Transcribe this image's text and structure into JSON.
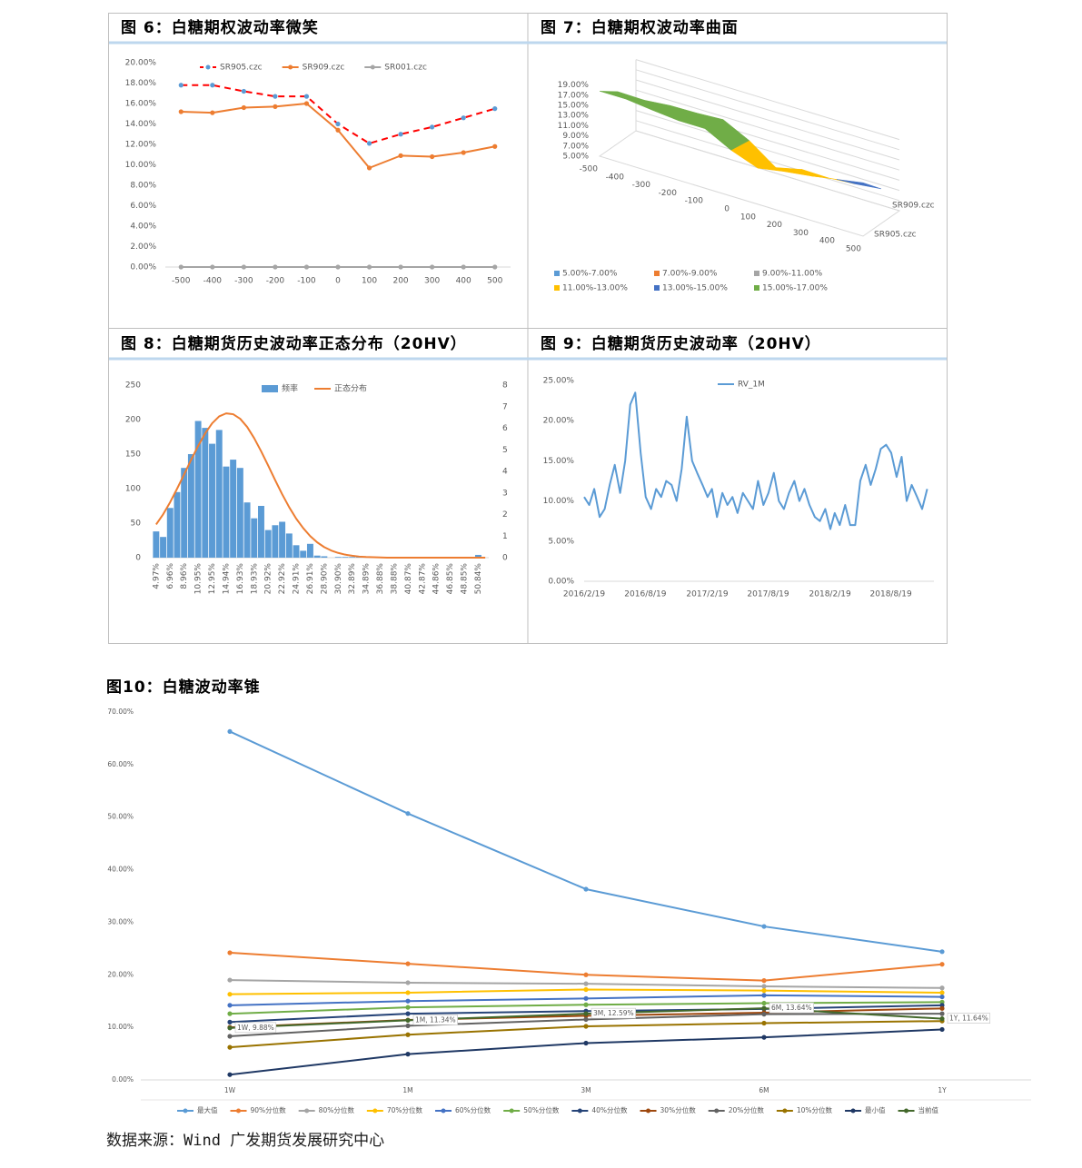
{
  "chart_data": [
    {
      "type": "line",
      "title": "图 6：白糖期权波动率微笑",
      "x": [
        -500,
        -400,
        -300,
        -200,
        -100,
        0,
        100,
        200,
        300,
        400,
        500
      ],
      "xlim": [
        -550,
        550
      ],
      "xticks": [
        -500,
        -400,
        -300,
        -200,
        -100,
        0,
        100,
        200,
        300,
        400,
        500
      ],
      "ylim": [
        0,
        20
      ],
      "yticks": [
        {
          "value": 0,
          "label": "0.00%"
        },
        {
          "value": 2,
          "label": "2.00%"
        },
        {
          "value": 4,
          "label": "4.00%"
        },
        {
          "value": 6,
          "label": "6.00%"
        },
        {
          "value": 8,
          "label": "8.00%"
        },
        {
          "value": 10,
          "label": "10.00%"
        },
        {
          "value": 12,
          "label": "12.00%"
        },
        {
          "value": 14,
          "label": "14.00%"
        },
        {
          "value": 16,
          "label": "16.00%"
        },
        {
          "value": 18,
          "label": "18.00%"
        },
        {
          "value": 20,
          "label": "20.00%"
        }
      ],
      "grid": false,
      "markers": true,
      "series": [
        {
          "name": "SR905.czc",
          "color": "#ff0000",
          "marker_color": "#5b9bd5",
          "dash": true,
          "values": [
            17.8,
            17.8,
            17.2,
            16.7,
            16.7,
            14.0,
            12.1,
            13.0,
            13.7,
            14.6,
            15.5
          ]
        },
        {
          "name": "SR909.czc",
          "color": "#ed7d31",
          "marker_color": "#ed7d31",
          "dash": false,
          "values": [
            15.2,
            15.1,
            15.6,
            15.7,
            16.0,
            13.4,
            9.7,
            10.9,
            10.8,
            11.2,
            11.8
          ]
        },
        {
          "name": "SR001.czc",
          "color": "#a5a5a5",
          "marker_color": "#a5a5a5",
          "dash": false,
          "values": [
            0,
            0,
            0,
            0,
            0,
            0,
            0,
            0,
            0,
            0,
            0
          ]
        }
      ]
    },
    {
      "type": "surface",
      "title": "图 7：白糖期权波动率曲面",
      "x": [
        -500,
        -400,
        -300,
        -200,
        -100,
        0,
        100,
        200,
        300,
        400,
        500
      ],
      "zticks": [
        {
          "value": 5,
          "label": "5.00%"
        },
        {
          "value": 7,
          "label": "7.00%"
        },
        {
          "value": 9,
          "label": "9.00%"
        },
        {
          "value": 11,
          "label": "11.00%"
        },
        {
          "value": 13,
          "label": "13.00%"
        },
        {
          "value": 15,
          "label": "15.00%"
        },
        {
          "value": 17,
          "label": "17.00%"
        },
        {
          "value": 19,
          "label": "19.00%"
        }
      ],
      "series": [
        {
          "name": "SR909.czc",
          "values": [
            15.2,
            15.1,
            15.6,
            15.7,
            16.0,
            13.4,
            9.7,
            10.9,
            10.8,
            11.2,
            11.8
          ]
        },
        {
          "name": "SR905.czc",
          "values": [
            17.8,
            17.8,
            17.2,
            16.7,
            16.7,
            14.0,
            12.1,
            13.0,
            13.7,
            14.6,
            15.5
          ]
        }
      ],
      "bands": [
        {
          "label": "5.00%-7.00%",
          "from": 5,
          "to": 7,
          "color": "#5b9bd5"
        },
        {
          "label": "7.00%-9.00%",
          "from": 7,
          "to": 9,
          "color": "#ed7d31"
        },
        {
          "label": "9.00%-11.00%",
          "from": 9,
          "to": 11,
          "color": "#a5a5a5"
        },
        {
          "label": "11.00%-13.00%",
          "from": 11,
          "to": 13,
          "color": "#ffc000"
        },
        {
          "label": "13.00%-15.00%",
          "from": 13,
          "to": 15,
          "color": "#4472c4"
        },
        {
          "label": "15.00%-17.00%",
          "from": 15,
          "to": 17,
          "color": "#70ad47"
        }
      ]
    },
    {
      "type": "combo",
      "title": "图 8：白糖期货历史波动率正态分布（20HV）",
      "categories": [
        "4.97%",
        null,
        "6.96%",
        null,
        "8.96%",
        null,
        "10.95%",
        null,
        "12.95%",
        null,
        "14.94%",
        null,
        "16.93%",
        null,
        "18.93%",
        null,
        "20.92%",
        null,
        "22.92%",
        null,
        "24.91%",
        null,
        "26.91%",
        null,
        "28.90%",
        null,
        "30.90%",
        null,
        "32.89%",
        null,
        "34.89%",
        null,
        "36.88%",
        null,
        "38.88%",
        null,
        "40.87%",
        null,
        "42.87%",
        null,
        "44.86%",
        null,
        "46.85%",
        null,
        "48.85%",
        null,
        "50.84%",
        null
      ],
      "ylim": [
        0,
        250
      ],
      "yticks": [
        0,
        50,
        100,
        150,
        200,
        250
      ],
      "y2lim": [
        0,
        8
      ],
      "y2ticks": [
        0,
        1,
        2,
        3,
        4,
        5,
        6,
        7,
        8
      ],
      "grid": false,
      "markers": false,
      "series": [
        {
          "name": "频率",
          "type": "bar",
          "color": "#5b9bd5",
          "values": [
            38,
            30,
            72,
            95,
            130,
            150,
            198,
            188,
            165,
            185,
            132,
            142,
            130,
            80,
            57,
            75,
            40,
            47,
            52,
            35,
            18,
            10,
            20,
            3,
            2,
            0,
            1,
            1,
            1,
            1,
            1,
            0,
            0,
            1,
            0,
            0,
            0,
            0,
            0,
            0,
            1,
            0,
            0,
            0,
            0,
            0,
            4,
            0
          ]
        },
        {
          "name": "正态分布",
          "type": "line",
          "axis": "y2",
          "color": "#ed7d31",
          "values": [
            1.54,
            2.01,
            2.57,
            3.2,
            3.86,
            4.54,
            5.18,
            5.76,
            6.23,
            6.55,
            6.69,
            6.65,
            6.44,
            6.06,
            5.54,
            4.93,
            4.27,
            3.59,
            2.94,
            2.34,
            1.81,
            1.37,
            1.0,
            0.71,
            0.49,
            0.33,
            0.22,
            0.14,
            0.09,
            0.05,
            0.03,
            0.02,
            0.01,
            0,
            0,
            0,
            0,
            0,
            0,
            0,
            0,
            0,
            0,
            0,
            0,
            0,
            0,
            0
          ]
        }
      ]
    },
    {
      "type": "line",
      "title": "图 9：白糖期货历史波动率（20HV）",
      "x": [
        "2016/2/19",
        "2016/3/5",
        "2016/3/20",
        "2016/4/5",
        "2016/4/20",
        "2016/5/5",
        "2016/5/20",
        "2016/6/5",
        "2016/6/20",
        "2016/7/5",
        "2016/7/20",
        "2016/8/5",
        "2016/8/20",
        "2016/9/5",
        "2016/9/20",
        "2016/10/5",
        "2016/10/20",
        "2016/11/5",
        "2016/11/20",
        "2016/12/5",
        "2016/12/20",
        "2017/1/5",
        "2017/1/20",
        "2017/2/5",
        "2017/2/20",
        "2017/3/5",
        "2017/3/20",
        "2017/4/5",
        "2017/4/20",
        "2017/5/5",
        "2017/5/20",
        "2017/6/5",
        "2017/6/20",
        "2017/7/5",
        "2017/7/20",
        "2017/8/5",
        "2017/8/20",
        "2017/9/5",
        "2017/9/20",
        "2017/10/5",
        "2017/10/20",
        "2017/11/5",
        "2017/11/20",
        "2017/12/5",
        "2017/12/20",
        "2018/1/5",
        "2018/1/20",
        "2018/2/5",
        "2018/2/20",
        "2018/3/5",
        "2018/3/20",
        "2018/4/5",
        "2018/4/20",
        "2018/5/5",
        "2018/5/20",
        "2018/6/5",
        "2018/6/20",
        "2018/7/5",
        "2018/7/20",
        "2018/8/5",
        "2018/8/20",
        "2018/9/5",
        "2018/9/20",
        "2018/10/5",
        "2018/10/20",
        "2018/11/5",
        "2018/11/20",
        "2018/12/5"
      ],
      "xlim": [
        "2016/2/19",
        "2018/12/25"
      ],
      "xticks": [
        "2016/2/19",
        "2016/8/19",
        "2017/2/19",
        "2017/8/19",
        "2018/2/19",
        "2018/8/19"
      ],
      "ylim": [
        0,
        25
      ],
      "yticks": [
        {
          "value": 0,
          "label": "0.00%"
        },
        {
          "value": 5,
          "label": "5.00%"
        },
        {
          "value": 10,
          "label": "10.00%"
        },
        {
          "value": 15,
          "label": "15.00%"
        },
        {
          "value": 20,
          "label": "20.00%"
        },
        {
          "value": 25,
          "label": "25.00%"
        }
      ],
      "grid": false,
      "markers": false,
      "series": [
        {
          "name": "RV_1M",
          "color": "#5b9bd5",
          "values": [
            10.5,
            9.5,
            11.5,
            8.0,
            9.0,
            12.0,
            14.5,
            11.0,
            15.0,
            22.0,
            23.5,
            16.0,
            10.5,
            9.0,
            11.5,
            10.5,
            12.5,
            12.0,
            10.0,
            14.0,
            20.5,
            15.0,
            13.5,
            12.0,
            10.5,
            11.5,
            8.0,
            11.0,
            9.5,
            10.5,
            8.5,
            11.0,
            10.0,
            9.0,
            12.5,
            9.5,
            11.0,
            13.5,
            10.0,
            9.0,
            11.0,
            12.5,
            10.0,
            11.5,
            9.5,
            8.0,
            7.5,
            9.0,
            6.5,
            8.5,
            7.0,
            9.5,
            7.0,
            7.0,
            12.5,
            14.5,
            12.0,
            14.0,
            16.5,
            17.0,
            16.0,
            13.0,
            15.5,
            10.0,
            12.0,
            10.5,
            9.0,
            11.5
          ]
        }
      ]
    },
    {
      "type": "line",
      "title": "图10：白糖波动率锥",
      "categories": [
        "1W",
        "1M",
        "3M",
        "6M",
        "1Y"
      ],
      "ylim": [
        0,
        70
      ],
      "yticks": [
        {
          "value": 0,
          "label": "0.00%"
        },
        {
          "value": 10,
          "label": "10.00%"
        },
        {
          "value": 20,
          "label": "20.00%"
        },
        {
          "value": 30,
          "label": "30.00%"
        },
        {
          "value": 40,
          "label": "40.00%"
        },
        {
          "value": 50,
          "label": "50.00%"
        },
        {
          "value": 60,
          "label": "60.00%"
        },
        {
          "value": 70,
          "label": "70.00%"
        }
      ],
      "grid": false,
      "markers": true,
      "series": [
        {
          "name": "最大值",
          "color": "#5b9bd5",
          "values": [
            66.3,
            50.7,
            36.3,
            29.2,
            24.4
          ]
        },
        {
          "name": "90%分位数",
          "color": "#ed7d31",
          "values": [
            24.2,
            22.1,
            20.0,
            18.9,
            22.0
          ]
        },
        {
          "name": "80%分位数",
          "color": "#a5a5a5",
          "values": [
            19.0,
            18.5,
            18.3,
            17.8,
            17.5
          ]
        },
        {
          "name": "70%分位数",
          "color": "#ffc000",
          "values": [
            16.3,
            16.6,
            17.2,
            17.0,
            16.6
          ]
        },
        {
          "name": "60%分位数",
          "color": "#4472c4",
          "values": [
            14.2,
            15.0,
            15.5,
            16.1,
            15.8
          ]
        },
        {
          "name": "50%分位数",
          "color": "#70ad47",
          "values": [
            12.6,
            13.8,
            14.3,
            14.6,
            14.8
          ]
        },
        {
          "name": "40%分位数",
          "color": "#264478",
          "values": [
            11.0,
            12.6,
            13.1,
            13.5,
            14.2
          ]
        },
        {
          "name": "30%分位数",
          "color": "#9e480e",
          "values": [
            10.0,
            11.4,
            12.2,
            12.8,
            13.6
          ]
        },
        {
          "name": "20%分位数",
          "color": "#636363",
          "values": [
            8.3,
            10.3,
            11.5,
            12.5,
            12.6
          ]
        },
        {
          "name": "10%分位数",
          "color": "#997300",
          "values": [
            6.2,
            8.6,
            10.2,
            10.8,
            11.2
          ]
        },
        {
          "name": "最小值",
          "color": "#1f3864",
          "values": [
            1.0,
            4.9,
            7.0,
            8.1,
            9.6
          ]
        },
        {
          "name": "当前值",
          "color": "#43682b",
          "values": [
            9.88,
            11.34,
            12.59,
            13.64,
            11.64
          ],
          "value_labels": [
            "1W, 9.88%",
            "1M, 11.34%",
            "3M, 12.59%",
            "6M, 13.64%",
            "1Y, 11.64%"
          ]
        }
      ]
    }
  ],
  "source": "数据来源：Wind 广发期货发展研究中心"
}
